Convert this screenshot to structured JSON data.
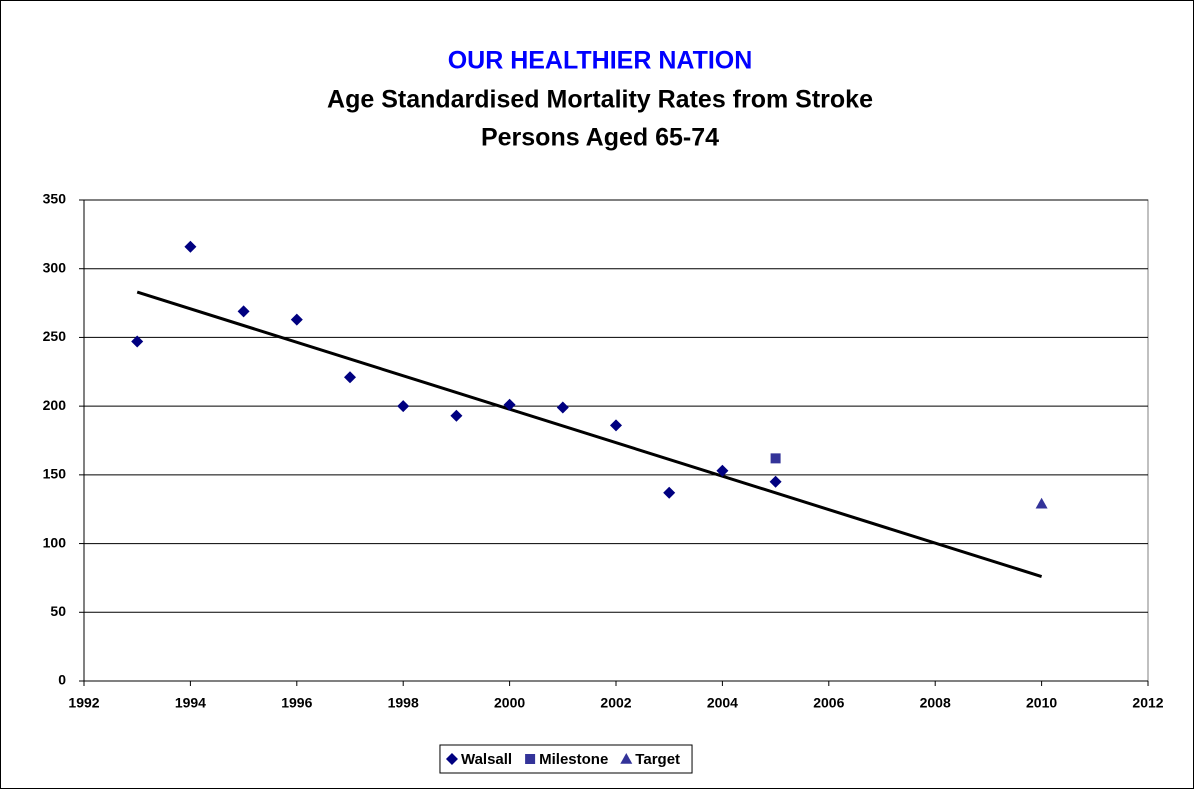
{
  "chart_data": {
    "type": "scatter",
    "title": "OUR HEALTHIER NATION",
    "subtitle": [
      "Age Standardised Mortality Rates from Stroke",
      "Persons Aged 65-74"
    ],
    "xlim": [
      1992,
      2012
    ],
    "xticks": [
      1992,
      1994,
      1996,
      1998,
      2000,
      2002,
      2004,
      2006,
      2008,
      2010,
      2012
    ],
    "ylim": [
      0,
      350
    ],
    "yticks": [
      0,
      50,
      100,
      150,
      200,
      250,
      300,
      350
    ],
    "grid": true,
    "legend": "bottom",
    "series": [
      {
        "name": "Walsall",
        "color": "#000080",
        "marker": "diamond",
        "x": [
          1993,
          1994,
          1995,
          1996,
          1997,
          1998,
          1999,
          2000,
          2001,
          2002,
          2003,
          2004,
          2005
        ],
        "values": [
          247,
          316,
          269,
          263,
          221,
          200,
          193,
          201,
          199,
          186,
          137,
          153,
          145
        ]
      },
      {
        "name": "Milestone",
        "color": "#333399",
        "marker": "square",
        "x": [
          2005
        ],
        "values": [
          162
        ]
      },
      {
        "name": "Target",
        "color": "#333399",
        "marker": "triangle",
        "x": [
          2010
        ],
        "values": [
          129
        ]
      }
    ],
    "trendline": {
      "x": [
        1993,
        2010
      ],
      "values": [
        283,
        76
      ],
      "color": "#000000"
    }
  }
}
